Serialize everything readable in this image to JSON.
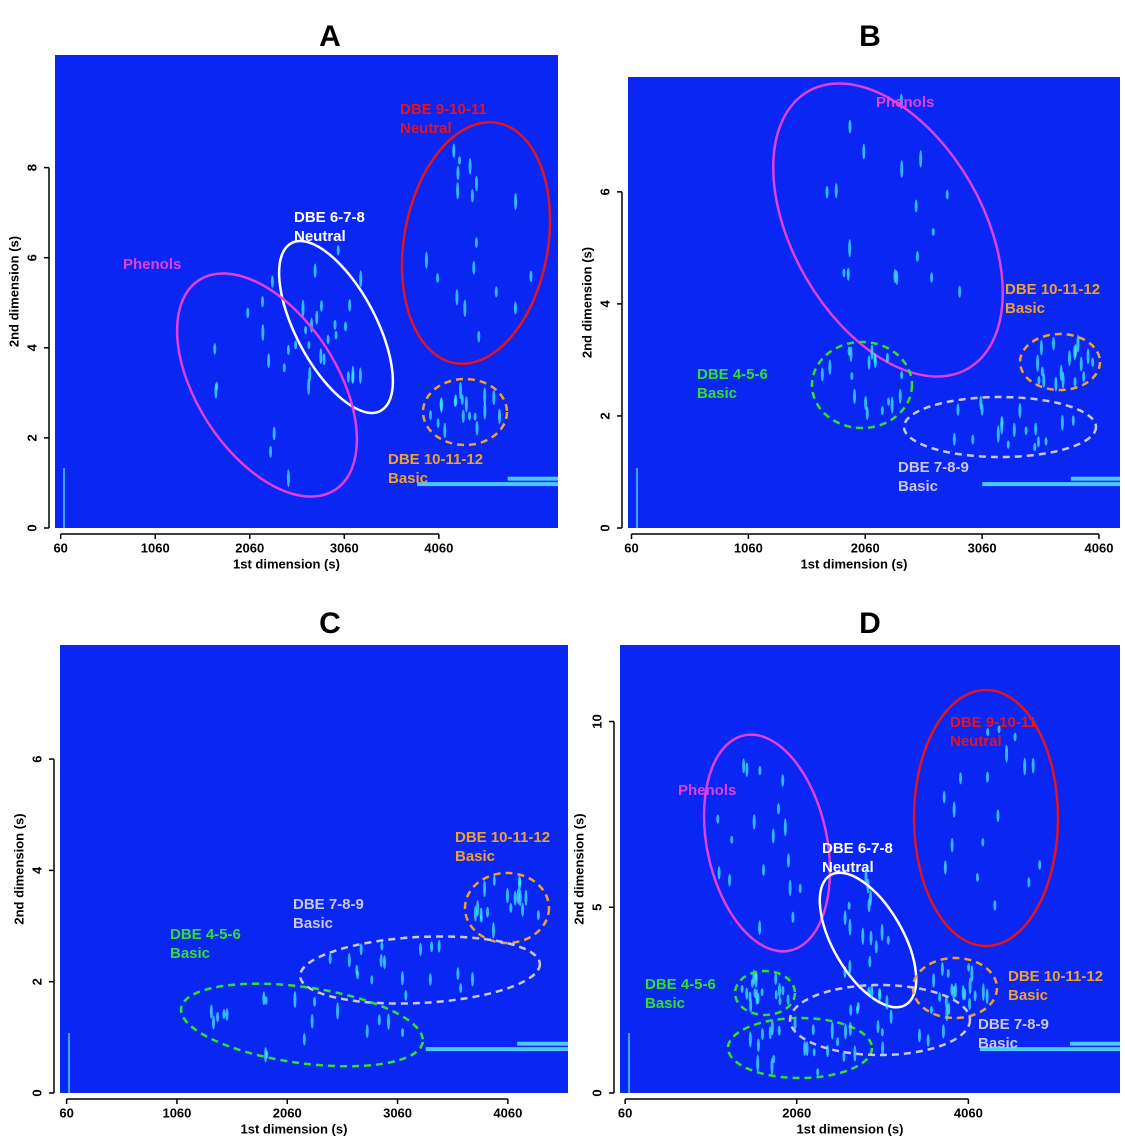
{
  "chart_data": [
    {
      "type": "heatmap",
      "title": "A",
      "xlabel": "1st dimension (s)",
      "ylabel": "2nd dimension (s)",
      "xlim": [
        0,
        5320
      ],
      "ylim": [
        0,
        10.5
      ],
      "xticks": [
        60,
        1060,
        2060,
        3060,
        4060
      ],
      "yticks": [
        0,
        2,
        4,
        6,
        8
      ],
      "background": "#0a26f2",
      "annotations": [
        {
          "text": [
            "DBE 9-10-11",
            "Neutral"
          ],
          "color": "#e3141e",
          "dashed": false
        },
        {
          "text": [
            "DBE 6-7-8",
            "Neutral"
          ],
          "color": "#ffffff",
          "dashed": false
        },
        {
          "text": [
            "Phenols"
          ],
          "color": "#e040e0",
          "dashed": false
        },
        {
          "text": [
            "DBE 10-11-12",
            "Basic"
          ],
          "color": "#f0a030",
          "dashed": true
        }
      ]
    },
    {
      "type": "heatmap",
      "title": "B",
      "xlabel": "1st dimension (s)",
      "ylabel": "2nd dimension (s)",
      "xlim": [
        30,
        4240
      ],
      "ylim": [
        0,
        8.05
      ],
      "xticks": [
        60,
        1060,
        2060,
        3060,
        4060
      ],
      "yticks": [
        0,
        2,
        4,
        6
      ],
      "background": "#0a26f2",
      "annotations": [
        {
          "text": [
            "Phenols"
          ],
          "color": "#e040e0",
          "dashed": false
        },
        {
          "text": [
            "DBE 10-11-12",
            "Basic"
          ],
          "color": "#f0a030",
          "dashed": true
        },
        {
          "text": [
            "DBE 4-5-6",
            "Basic"
          ],
          "color": "#30e030",
          "dashed": true
        },
        {
          "text": [
            "DBE 7-8-9",
            "Basic"
          ],
          "color": "#c8c8e0",
          "dashed": true
        }
      ]
    },
    {
      "type": "heatmap",
      "title": "C",
      "xlabel": "1st dimension (s)",
      "ylabel": "2nd dimension (s)",
      "xlim": [
        0,
        4605
      ],
      "ylim": [
        0,
        8.05
      ],
      "xticks": [
        60,
        1060,
        2060,
        3060,
        4060
      ],
      "yticks": [
        0,
        2,
        4,
        6
      ],
      "background": "#0a26f2",
      "annotations": [
        {
          "text": [
            "DBE 10-11-12",
            "Basic"
          ],
          "color": "#f0a030",
          "dashed": true
        },
        {
          "text": [
            "DBE 7-8-9",
            "Basic"
          ],
          "color": "#c8c8e0",
          "dashed": true
        },
        {
          "text": [
            "DBE 4-5-6",
            "Basic"
          ],
          "color": "#30e030",
          "dashed": true
        }
      ]
    },
    {
      "type": "heatmap",
      "title": "D",
      "xlabel": "1st dimension (s)",
      "ylabel": "2nd dimension (s)",
      "xlim": [
        0,
        5827
      ],
      "ylim": [
        0,
        12.06
      ],
      "xticks": [
        60,
        2060,
        4060
      ],
      "yticks": [
        0,
        5,
        10
      ],
      "background": "#0a26f2",
      "annotations": [
        {
          "text": [
            "DBE 9-10-11",
            "Neutral"
          ],
          "color": "#e3141e",
          "dashed": false
        },
        {
          "text": [
            "Phenols"
          ],
          "color": "#e040e0",
          "dashed": false
        },
        {
          "text": [
            "DBE 6-7-8",
            "Neutral"
          ],
          "color": "#ffffff",
          "dashed": false
        },
        {
          "text": [
            "DBE 10-11-12",
            "Basic"
          ],
          "color": "#f0a030",
          "dashed": true
        },
        {
          "text": [
            "DBE 4-5-6",
            "Basic"
          ],
          "color": "#30e030",
          "dashed": true
        },
        {
          "text": [
            "DBE 7-8-9",
            "Basic"
          ],
          "color": "#c8c8e0",
          "dashed": true
        }
      ]
    }
  ]
}
